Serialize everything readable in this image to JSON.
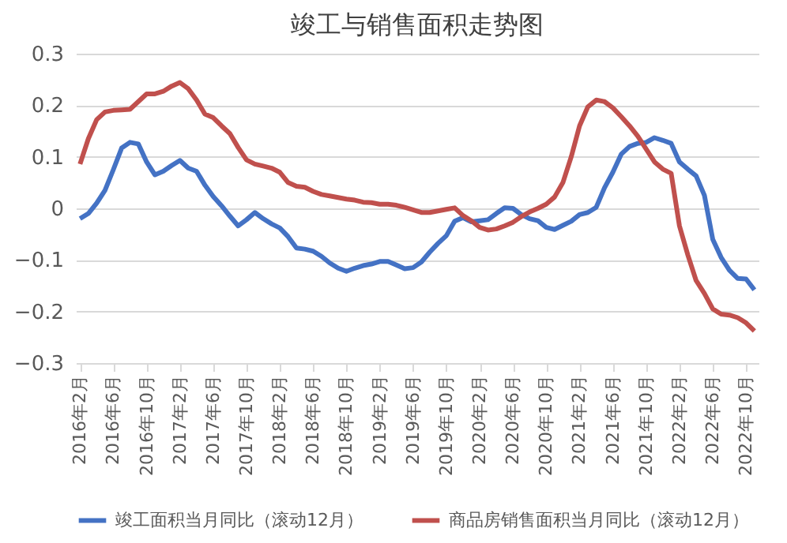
{
  "chart_data": {
    "type": "line",
    "title": "竣工与销售面积走势图",
    "categories": [
      "2016年2月",
      null,
      null,
      null,
      "2016年6月",
      null,
      null,
      null,
      "2016年10月",
      null,
      null,
      null,
      "2017年2月",
      null,
      null,
      null,
      "2017年6月",
      null,
      null,
      null,
      "2017年10月",
      null,
      null,
      null,
      "2018年2月",
      null,
      null,
      null,
      "2018年6月",
      null,
      null,
      null,
      "2018年10月",
      null,
      null,
      null,
      "2019年2月",
      null,
      null,
      null,
      "2019年6月",
      null,
      null,
      null,
      "2019年10月",
      null,
      null,
      null,
      "2020年2月",
      null,
      null,
      null,
      "2020年6月",
      null,
      null,
      null,
      "2020年10月",
      null,
      null,
      null,
      "2021年2月",
      null,
      null,
      null,
      "2021年6月",
      null,
      null,
      null,
      "2021年10月",
      null,
      null,
      null,
      "2022年2月",
      null,
      null,
      null,
      "2022年6月",
      null,
      null,
      null,
      "2022年10月",
      null
    ],
    "series": [
      {
        "name": "竣工面积当月同比（滚动12月）",
        "color": "#4472c4",
        "values": [
          -0.02,
          -0.01,
          0.01,
          0.035,
          0.075,
          0.117,
          0.128,
          0.125,
          0.09,
          0.065,
          0.072,
          0.083,
          0.093,
          0.078,
          0.072,
          0.045,
          0.023,
          0.005,
          -0.015,
          -0.034,
          -0.022,
          -0.008,
          -0.02,
          -0.03,
          -0.038,
          -0.055,
          -0.077,
          -0.079,
          -0.083,
          -0.093,
          -0.106,
          -0.116,
          -0.122,
          -0.116,
          -0.111,
          -0.108,
          -0.103,
          -0.103,
          -0.11,
          -0.117,
          -0.115,
          -0.104,
          -0.085,
          -0.068,
          -0.053,
          -0.025,
          -0.018,
          -0.026,
          -0.024,
          -0.022,
          -0.01,
          0.001,
          0.0,
          -0.012,
          -0.02,
          -0.024,
          -0.037,
          -0.041,
          -0.033,
          -0.025,
          -0.012,
          -0.008,
          0.002,
          0.04,
          0.07,
          0.105,
          0.12,
          0.126,
          0.128,
          0.137,
          0.132,
          0.126,
          0.09,
          0.076,
          0.063,
          0.025,
          -0.06,
          -0.095,
          -0.12,
          -0.136,
          -0.137,
          -0.158
        ]
      },
      {
        "name": "商品房销售面积当月同比（滚动12月）",
        "color": "#c0504d",
        "values": [
          0.086,
          0.135,
          0.172,
          0.187,
          0.19,
          0.191,
          0.192,
          0.207,
          0.222,
          0.222,
          0.227,
          0.237,
          0.244,
          0.232,
          0.21,
          0.183,
          0.176,
          0.16,
          0.145,
          0.118,
          0.094,
          0.086,
          0.082,
          0.078,
          0.07,
          0.05,
          0.043,
          0.041,
          0.033,
          0.027,
          0.024,
          0.021,
          0.018,
          0.016,
          0.012,
          0.011,
          0.008,
          0.008,
          0.006,
          0.002,
          -0.003,
          -0.008,
          -0.008,
          -0.005,
          -0.002,
          0.001,
          -0.014,
          -0.024,
          -0.037,
          -0.042,
          -0.04,
          -0.034,
          -0.027,
          -0.016,
          -0.007,
          0.0,
          0.008,
          0.022,
          0.05,
          0.1,
          0.16,
          0.197,
          0.21,
          0.207,
          0.195,
          0.178,
          0.16,
          0.14,
          0.115,
          0.09,
          0.076,
          0.068,
          -0.034,
          -0.09,
          -0.14,
          -0.165,
          -0.195,
          -0.205,
          -0.207,
          -0.212,
          -0.222,
          -0.238
        ]
      }
    ],
    "ylim": [
      -0.3,
      0.3
    ],
    "yticks": [
      -0.3,
      -0.2,
      -0.1,
      0,
      0.1,
      0.2,
      0.3
    ],
    "grid": "y",
    "legend": "bottom",
    "marker": "none",
    "line_style": "solid"
  }
}
